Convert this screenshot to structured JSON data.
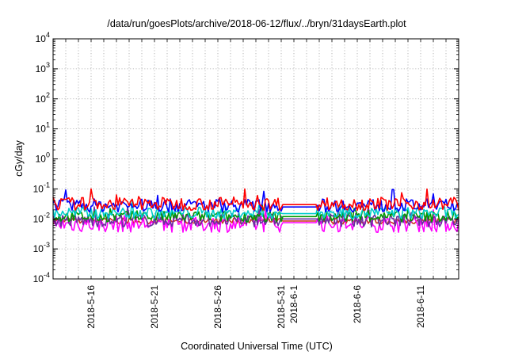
{
  "chart_data": {
    "type": "line",
    "title": "/data/run/goesPlots/archive/2018-06-12/flux/../bryn/31daysEarth.plot",
    "xlabel": "Coordinated Universal Time (UTC)",
    "ylabel": "cGy/day",
    "yscale": "log",
    "ylim": [
      0.0001,
      10000
    ],
    "xlim": [
      "2018-05-13",
      "2018-06-14"
    ],
    "grid": true,
    "x_ticks": [
      {
        "date": "2018-05-16",
        "label": "2018-5-16"
      },
      {
        "date": "2018-05-21",
        "label": "2018-5-21"
      },
      {
        "date": "2018-05-26",
        "label": "2018-5-26"
      },
      {
        "date": "2018-05-31",
        "label": "2018-5-31"
      },
      {
        "date": "2018-06-01",
        "label": "2018-6-1"
      },
      {
        "date": "2018-06-06",
        "label": "2018-6-6"
      },
      {
        "date": "2018-06-11",
        "label": "2018-6-11"
      }
    ],
    "y_ticks": [
      {
        "value": 0.0001,
        "base": "10",
        "exp": "-4"
      },
      {
        "value": 0.001,
        "base": "10",
        "exp": "-3"
      },
      {
        "value": 0.01,
        "base": "10",
        "exp": "-2"
      },
      {
        "value": 0.1,
        "base": "10",
        "exp": "-1"
      },
      {
        "value": 1,
        "base": "10",
        "exp": "0"
      },
      {
        "value": 10,
        "base": "10",
        "exp": "1"
      },
      {
        "value": 100,
        "base": "10",
        "exp": "2"
      },
      {
        "value": 1000,
        "base": "10",
        "exp": "3"
      },
      {
        "value": 10000,
        "base": "10",
        "exp": "4"
      }
    ],
    "data_gap": {
      "start": "2018-05-31",
      "end": "2018-06-03"
    },
    "series": [
      {
        "color": "#ff0000",
        "baseline": 0.032,
        "gap_level": 0.03,
        "noise": 0.22,
        "spike_max": 0.1
      },
      {
        "color": "#0000ff",
        "baseline": 0.028,
        "gap_level": 0.025,
        "noise": 0.22,
        "spike_max": 0.095
      },
      {
        "color": "#00cccc",
        "baseline": 0.016,
        "gap_level": 0.015,
        "noise": 0.2,
        "spike_max": 0.04
      },
      {
        "color": "#009900",
        "baseline": 0.012,
        "gap_level": 0.012,
        "noise": 0.18,
        "spike_max": 0.03
      },
      {
        "color": "#6a2fa0",
        "baseline": 0.009,
        "gap_level": 0.01,
        "noise": 0.22,
        "spike_max": 0.025
      },
      {
        "color": "#ff00ff",
        "baseline": 0.0068,
        "gap_level": 0.0075,
        "noise": 0.28,
        "spike_max": 0.02
      },
      {
        "color": "#cc3322",
        "baseline": 0.0085,
        "gap_level": 0.0085,
        "noise": 0.1,
        "spike_max": 0.012
      }
    ]
  }
}
